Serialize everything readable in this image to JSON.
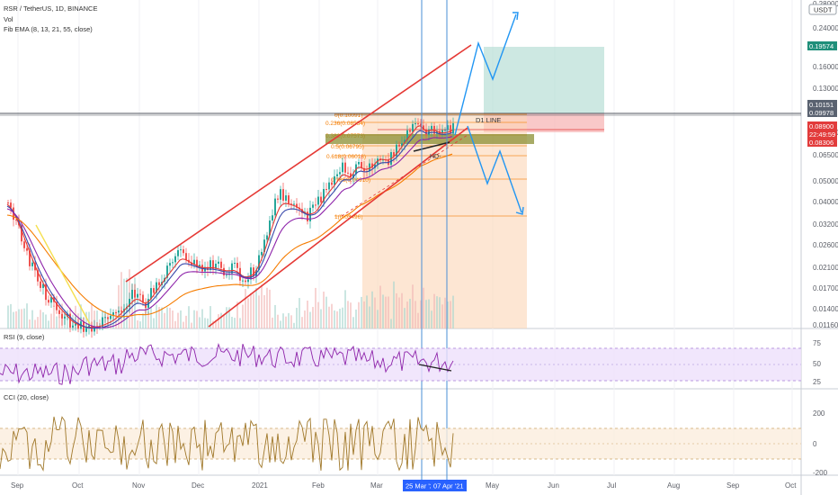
{
  "header": {
    "symbol": "RSR / TetherUS, 1D, BINANCE",
    "vol": "Vol",
    "ema": "Fib EMA (8, 13, 21, 55, close)"
  },
  "currency_badge": "USDT",
  "price_axis": {
    "ticks": [
      "0.28000",
      "0.24000",
      "0.16000",
      "0.13000",
      "0.08000",
      "0.06500",
      "0.05000",
      "0.04000",
      "0.03200",
      "0.02600",
      "0.02100",
      "0.01700",
      "0.01400",
      "0.01160"
    ],
    "badges": [
      {
        "value": "0.19574",
        "color": "#1f8f7a"
      },
      {
        "value": "0.10151",
        "color": "#5a6270"
      },
      {
        "value": "0.09978",
        "color": "#5a6270"
      },
      {
        "value": "0.08900",
        "color": "#e23b3b"
      },
      {
        "value": "22:49:59",
        "color": "#e23b3b"
      },
      {
        "value": "0.08306",
        "color": "#e23b3b"
      }
    ]
  },
  "fib_levels": [
    "0(0.10091)",
    "0.236(0.08534)",
    "0.382(0.07573)",
    "0.5(0.06795)",
    "0.618(0.06018)",
    "0.786(0.04910)",
    "1(0.03496)"
  ],
  "annotations": {
    "d1_line": "D1 LINE",
    "hd": "HD-"
  },
  "rsi": {
    "title": "RSI (9, close)",
    "ticks": [
      "75",
      "50",
      "25"
    ]
  },
  "cci": {
    "title": "CCI (20, close)",
    "ticks": [
      "200",
      "0",
      "-200"
    ]
  },
  "time_axis": {
    "ticks": [
      "Sep",
      "Oct",
      "Nov",
      "Dec",
      "2021",
      "Feb",
      "Mar",
      "May",
      "Jun",
      "Jul",
      "Aug",
      "Sep",
      "Oct"
    ],
    "markers": [
      "25 Mar '2",
      "07 Apr '21"
    ]
  },
  "colors": {
    "bull": "#26a69a",
    "bear": "#ef5350",
    "channel": "#e53935",
    "arrow": "#2196f3",
    "fib": "#f57c00",
    "rsi": "#8e24aa",
    "cci": "#a0782a",
    "target": "#b2dcd3",
    "stop": "#f7b6b6"
  },
  "chart_data": {
    "type": "candlestick",
    "title": "RSR / TetherUS, 1D, BINANCE",
    "price_scale": "log",
    "last_price": 0.089,
    "fib_retracement": {
      "0": 0.10091,
      "0.236": 0.08534,
      "0.382": 0.07573,
      "0.5": 0.06795,
      "0.618": 0.06018,
      "0.786": 0.0491,
      "1": 0.03496
    },
    "position": {
      "target": 0.19574,
      "entry": 0.10151,
      "stop": 0.08306
    }
  }
}
